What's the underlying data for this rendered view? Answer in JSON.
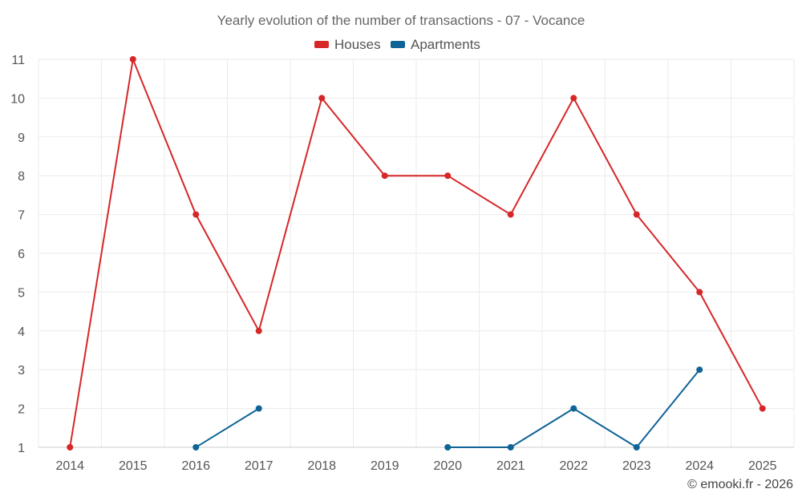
{
  "chart_data": {
    "type": "line",
    "title": "Yearly evolution of the number of transactions - 07 - Vocance",
    "categories": [
      "2014",
      "2015",
      "2016",
      "2017",
      "2018",
      "2019",
      "2020",
      "2021",
      "2022",
      "2023",
      "2024",
      "2025"
    ],
    "ylim": [
      1,
      11
    ],
    "yticks": [
      1,
      2,
      3,
      4,
      5,
      6,
      7,
      8,
      9,
      10,
      11
    ],
    "grid": true,
    "legend_position": "top-center",
    "series": [
      {
        "name": "Houses",
        "color": "#d62728",
        "values": [
          1,
          11,
          7,
          4,
          10,
          8,
          8,
          7,
          10,
          7,
          5,
          2
        ]
      },
      {
        "name": "Apartments",
        "color": "#0e6496",
        "values": [
          null,
          null,
          1,
          2,
          null,
          null,
          1,
          1,
          2,
          1,
          3,
          null
        ]
      }
    ]
  },
  "credit": "© emooki.fr - 2026"
}
